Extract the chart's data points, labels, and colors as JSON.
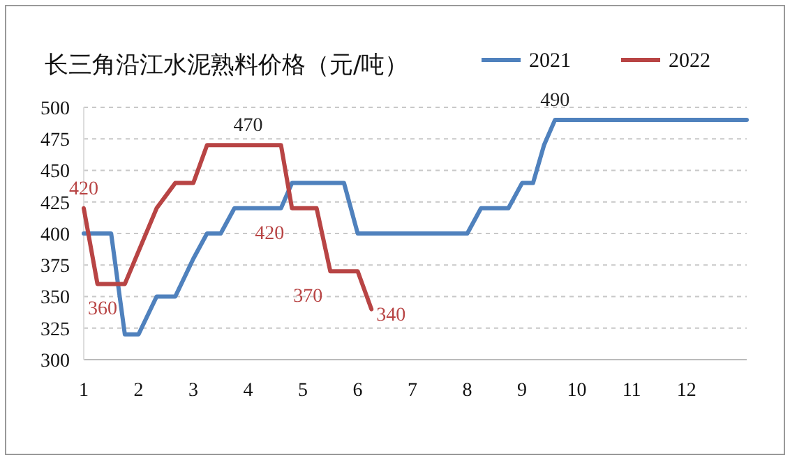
{
  "chart_data": {
    "type": "line",
    "title": "长三角沿江水泥熟料价格（元/吨）",
    "xlim": [
      1,
      13.1
    ],
    "xticks": [
      1,
      2,
      3,
      4,
      5,
      6,
      7,
      8,
      9,
      10,
      11,
      12
    ],
    "ylim": [
      300,
      500
    ],
    "yticks": [
      300,
      325,
      350,
      375,
      400,
      425,
      450,
      475,
      500
    ],
    "grid": "y",
    "legend": "top right",
    "marker": "none",
    "line_style": "solid",
    "series": [
      {
        "name": "2021",
        "color": "#4f81bd",
        "x": [
          1,
          1.5,
          1.75,
          2,
          2.33,
          2.67,
          3,
          3.25,
          3.5,
          3.75,
          4.6,
          4.8,
          5.75,
          6,
          8,
          8.25,
          8.75,
          9,
          9.2,
          9.4,
          9.6,
          13.1
        ],
        "values": [
          400,
          400,
          320,
          320,
          350,
          350,
          380,
          400,
          400,
          420,
          420,
          440,
          440,
          400,
          400,
          420,
          420,
          440,
          440,
          470,
          490,
          490
        ]
      },
      {
        "name": "2022",
        "color": "#b84444",
        "x": [
          1,
          1.25,
          1.75,
          2.33,
          2.67,
          3,
          3.25,
          4.6,
          4.8,
          5.25,
          5.5,
          6,
          6.25
        ],
        "values": [
          420,
          360,
          360,
          420,
          440,
          440,
          470,
          470,
          420,
          420,
          370,
          370,
          340
        ]
      }
    ],
    "annotations": [
      {
        "text": "420",
        "x": 1,
        "y": 420
      },
      {
        "text": "360",
        "x": 1.75,
        "y": 360
      },
      {
        "text": "470",
        "x": 4,
        "y": 470
      },
      {
        "text": "420",
        "x": 4.8,
        "y": 420
      },
      {
        "text": "370",
        "x": 5.5,
        "y": 370
      },
      {
        "text": "340",
        "x": 6.25,
        "y": 340
      },
      {
        "text": "490",
        "x": 9.6,
        "y": 490
      }
    ]
  }
}
